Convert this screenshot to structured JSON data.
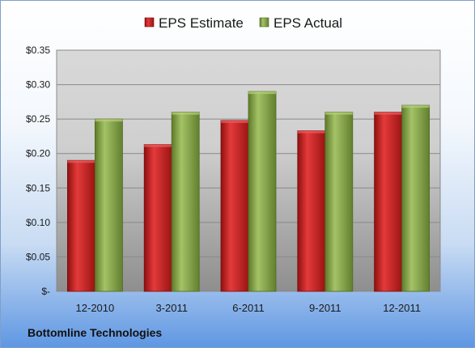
{
  "chart_data": {
    "type": "bar",
    "categories": [
      "12-2010",
      "3-2011",
      "6-2011",
      "9-2011",
      "12-2011"
    ],
    "series": [
      {
        "name": "EPS Estimate",
        "values": [
          0.19,
          0.213,
          0.248,
          0.233,
          0.26
        ],
        "color": "#d42020"
      },
      {
        "name": "EPS Actual",
        "values": [
          0.25,
          0.26,
          0.29,
          0.26,
          0.27
        ],
        "color": "#8aaa4a"
      }
    ],
    "yticks": [
      0,
      0.05,
      0.1,
      0.15,
      0.2,
      0.25,
      0.3,
      0.35
    ],
    "ytick_labels": [
      "$-",
      "$0.05",
      "$0.10",
      "$0.15",
      "$0.20",
      "$0.25",
      "$0.30",
      "$0.35"
    ],
    "ylim": [
      0,
      0.35
    ],
    "grid": true,
    "legend_position": "top"
  },
  "footer": {
    "company": "Bottomline Technologies"
  }
}
